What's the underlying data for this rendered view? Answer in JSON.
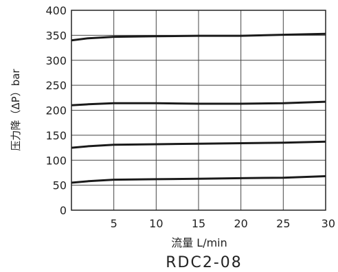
{
  "chart_data": {
    "type": "line",
    "title": "RDC2-08",
    "xlabel": "流量 L/min",
    "ylabel": "压力降（ΔP）bar",
    "xlim": [
      0,
      30
    ],
    "ylim": [
      0,
      400
    ],
    "x_ticks": [
      5,
      10,
      15,
      20,
      25,
      30
    ],
    "y_ticks": [
      0,
      50,
      100,
      150,
      200,
      250,
      300,
      350,
      400
    ],
    "grid": true,
    "series": [
      {
        "x": [
          0,
          2,
          5,
          10,
          15,
          20,
          25,
          30
        ],
        "values": [
          55,
          58,
          61,
          62,
          63,
          64,
          65,
          68
        ]
      },
      {
        "x": [
          0,
          2,
          5,
          10,
          15,
          20,
          25,
          30
        ],
        "values": [
          125,
          128,
          131,
          132,
          133,
          134,
          135,
          137
        ]
      },
      {
        "x": [
          0,
          2,
          5,
          10,
          15,
          20,
          25,
          30
        ],
        "values": [
          210,
          212,
          214,
          214,
          213,
          213,
          214,
          217
        ]
      },
      {
        "x": [
          0,
          2,
          5,
          10,
          15,
          20,
          25,
          30
        ],
        "values": [
          340,
          344,
          347,
          348,
          349,
          349,
          351,
          353
        ]
      }
    ]
  }
}
